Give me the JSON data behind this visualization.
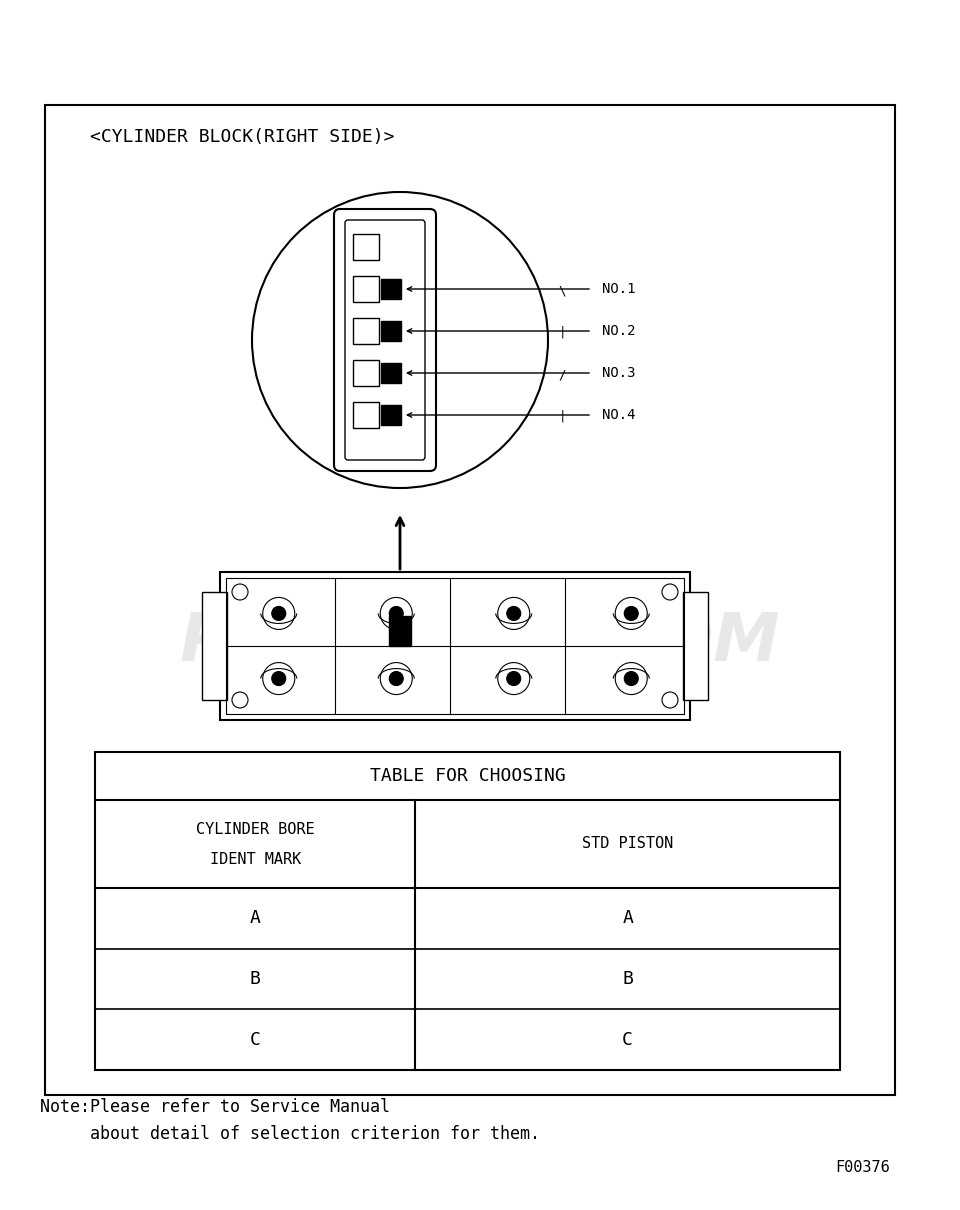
{
  "bg_color": "#ffffff",
  "title_diagram": "<CYLINDER BLOCK(RIGHT SIDE)>",
  "table_title": "TABLE FOR CHOOSING",
  "col1_header_line1": "CYLINDER BORE",
  "col1_header_line2": "IDENT MARK",
  "col2_header": "STD PISTON",
  "table_rows": [
    [
      "A",
      "A"
    ],
    [
      "B",
      "B"
    ],
    [
      "C",
      "C"
    ]
  ],
  "note_line1": "Note:Please refer to Service Manual",
  "note_line2": "     about detail of selection criterion for them.",
  "footer": "F00376",
  "no_labels": [
    "NO.1",
    "NO.2",
    "NO.3",
    "NO.4"
  ]
}
